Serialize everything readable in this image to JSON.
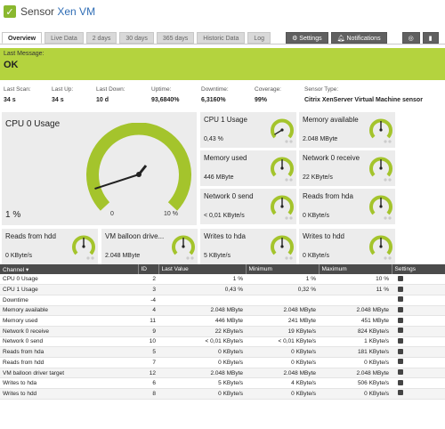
{
  "header": {
    "prefix": "Sensor",
    "name": "Xen VM"
  },
  "tabs": [
    "Overview",
    "Live Data",
    "2 days",
    "30 days",
    "365 days",
    "Historic Data",
    "Log"
  ],
  "actions": [
    "Settings",
    "Notifications"
  ],
  "status": {
    "label": "Last Message:",
    "value": "OK"
  },
  "info": [
    {
      "k": "Last Scan:",
      "v": "34 s"
    },
    {
      "k": "Last Up:",
      "v": "34 s"
    },
    {
      "k": "Last Down:",
      "v": "10 d"
    },
    {
      "k": "Uptime:",
      "v": "93,6840%"
    },
    {
      "k": "Downtime:",
      "v": "6,3160%"
    },
    {
      "k": "Coverage:",
      "v": "99%"
    },
    {
      "k": "Sensor Type:",
      "v": "Citrix XenServer Virtual Machine sensor"
    }
  ],
  "big_gauge": {
    "name": "CPU 0 Usage",
    "value": "1 %",
    "min": "0",
    "max": "10 %",
    "level": 0.1
  },
  "gauges": [
    {
      "name": "CPU 1 Usage",
      "value": "0,43 %",
      "level": 0.05
    },
    {
      "name": "Memory available",
      "value": "2.048 MByte",
      "level": 0.5
    },
    {
      "name": "Memory used",
      "value": "446 MByte",
      "level": 0.5
    },
    {
      "name": "Network 0 receive",
      "value": "22 KByte/s",
      "level": 0.5
    },
    {
      "name": "Network 0 send",
      "value": "< 0,01 KByte/s",
      "level": 0.5
    },
    {
      "name": "Reads from hda",
      "value": "0 KByte/s",
      "level": 0.5
    },
    {
      "name": "Reads from hdd",
      "value": "0 KByte/s",
      "level": 0.5
    },
    {
      "name": "VM balloon drive...",
      "value": "2.048 MByte",
      "level": 0.5
    },
    {
      "name": "Writes to hda",
      "value": "5 KByte/s",
      "level": 0.5
    },
    {
      "name": "Writes to hdd",
      "value": "0 KByte/s",
      "level": 0.5
    }
  ],
  "table": {
    "headers": [
      "Channel",
      "ID",
      "Last Value",
      "Minimum",
      "Maximum",
      "Settings"
    ],
    "rows": [
      [
        "CPU 0 Usage",
        "2",
        "1 %",
        "1 %",
        "10 %"
      ],
      [
        "CPU 1 Usage",
        "3",
        "0,43 %",
        "0,32 %",
        "11 %"
      ],
      [
        "Downtime",
        "-4",
        "",
        "",
        ""
      ],
      [
        "Memory available",
        "4",
        "2.048 MByte",
        "2.048 MByte",
        "2.048 MByte"
      ],
      [
        "Memory used",
        "11",
        "446 MByte",
        "241 MByte",
        "451 MByte"
      ],
      [
        "Network 0 receive",
        "9",
        "22 KByte/s",
        "19 KByte/s",
        "824 KByte/s"
      ],
      [
        "Network 0 send",
        "10",
        "< 0,01 KByte/s",
        "< 0,01 KByte/s",
        "1 KByte/s"
      ],
      [
        "Reads from hda",
        "5",
        "0 KByte/s",
        "0 KByte/s",
        "181 KByte/s"
      ],
      [
        "Reads from hdd",
        "7",
        "0 KByte/s",
        "0 KByte/s",
        "0 KByte/s"
      ],
      [
        "VM balloon driver target",
        "12",
        "2.048 MByte",
        "2.048 MByte",
        "2.048 MByte"
      ],
      [
        "Writes to hda",
        "6",
        "5 KByte/s",
        "4 KByte/s",
        "506 KByte/s"
      ],
      [
        "Writes to hdd",
        "8",
        "0 KByte/s",
        "0 KByte/s",
        "0 KByte/s"
      ]
    ]
  },
  "colors": {
    "ok": "#b4d33e",
    "gauge": "#a4c42c",
    "tile": "#ececec"
  }
}
